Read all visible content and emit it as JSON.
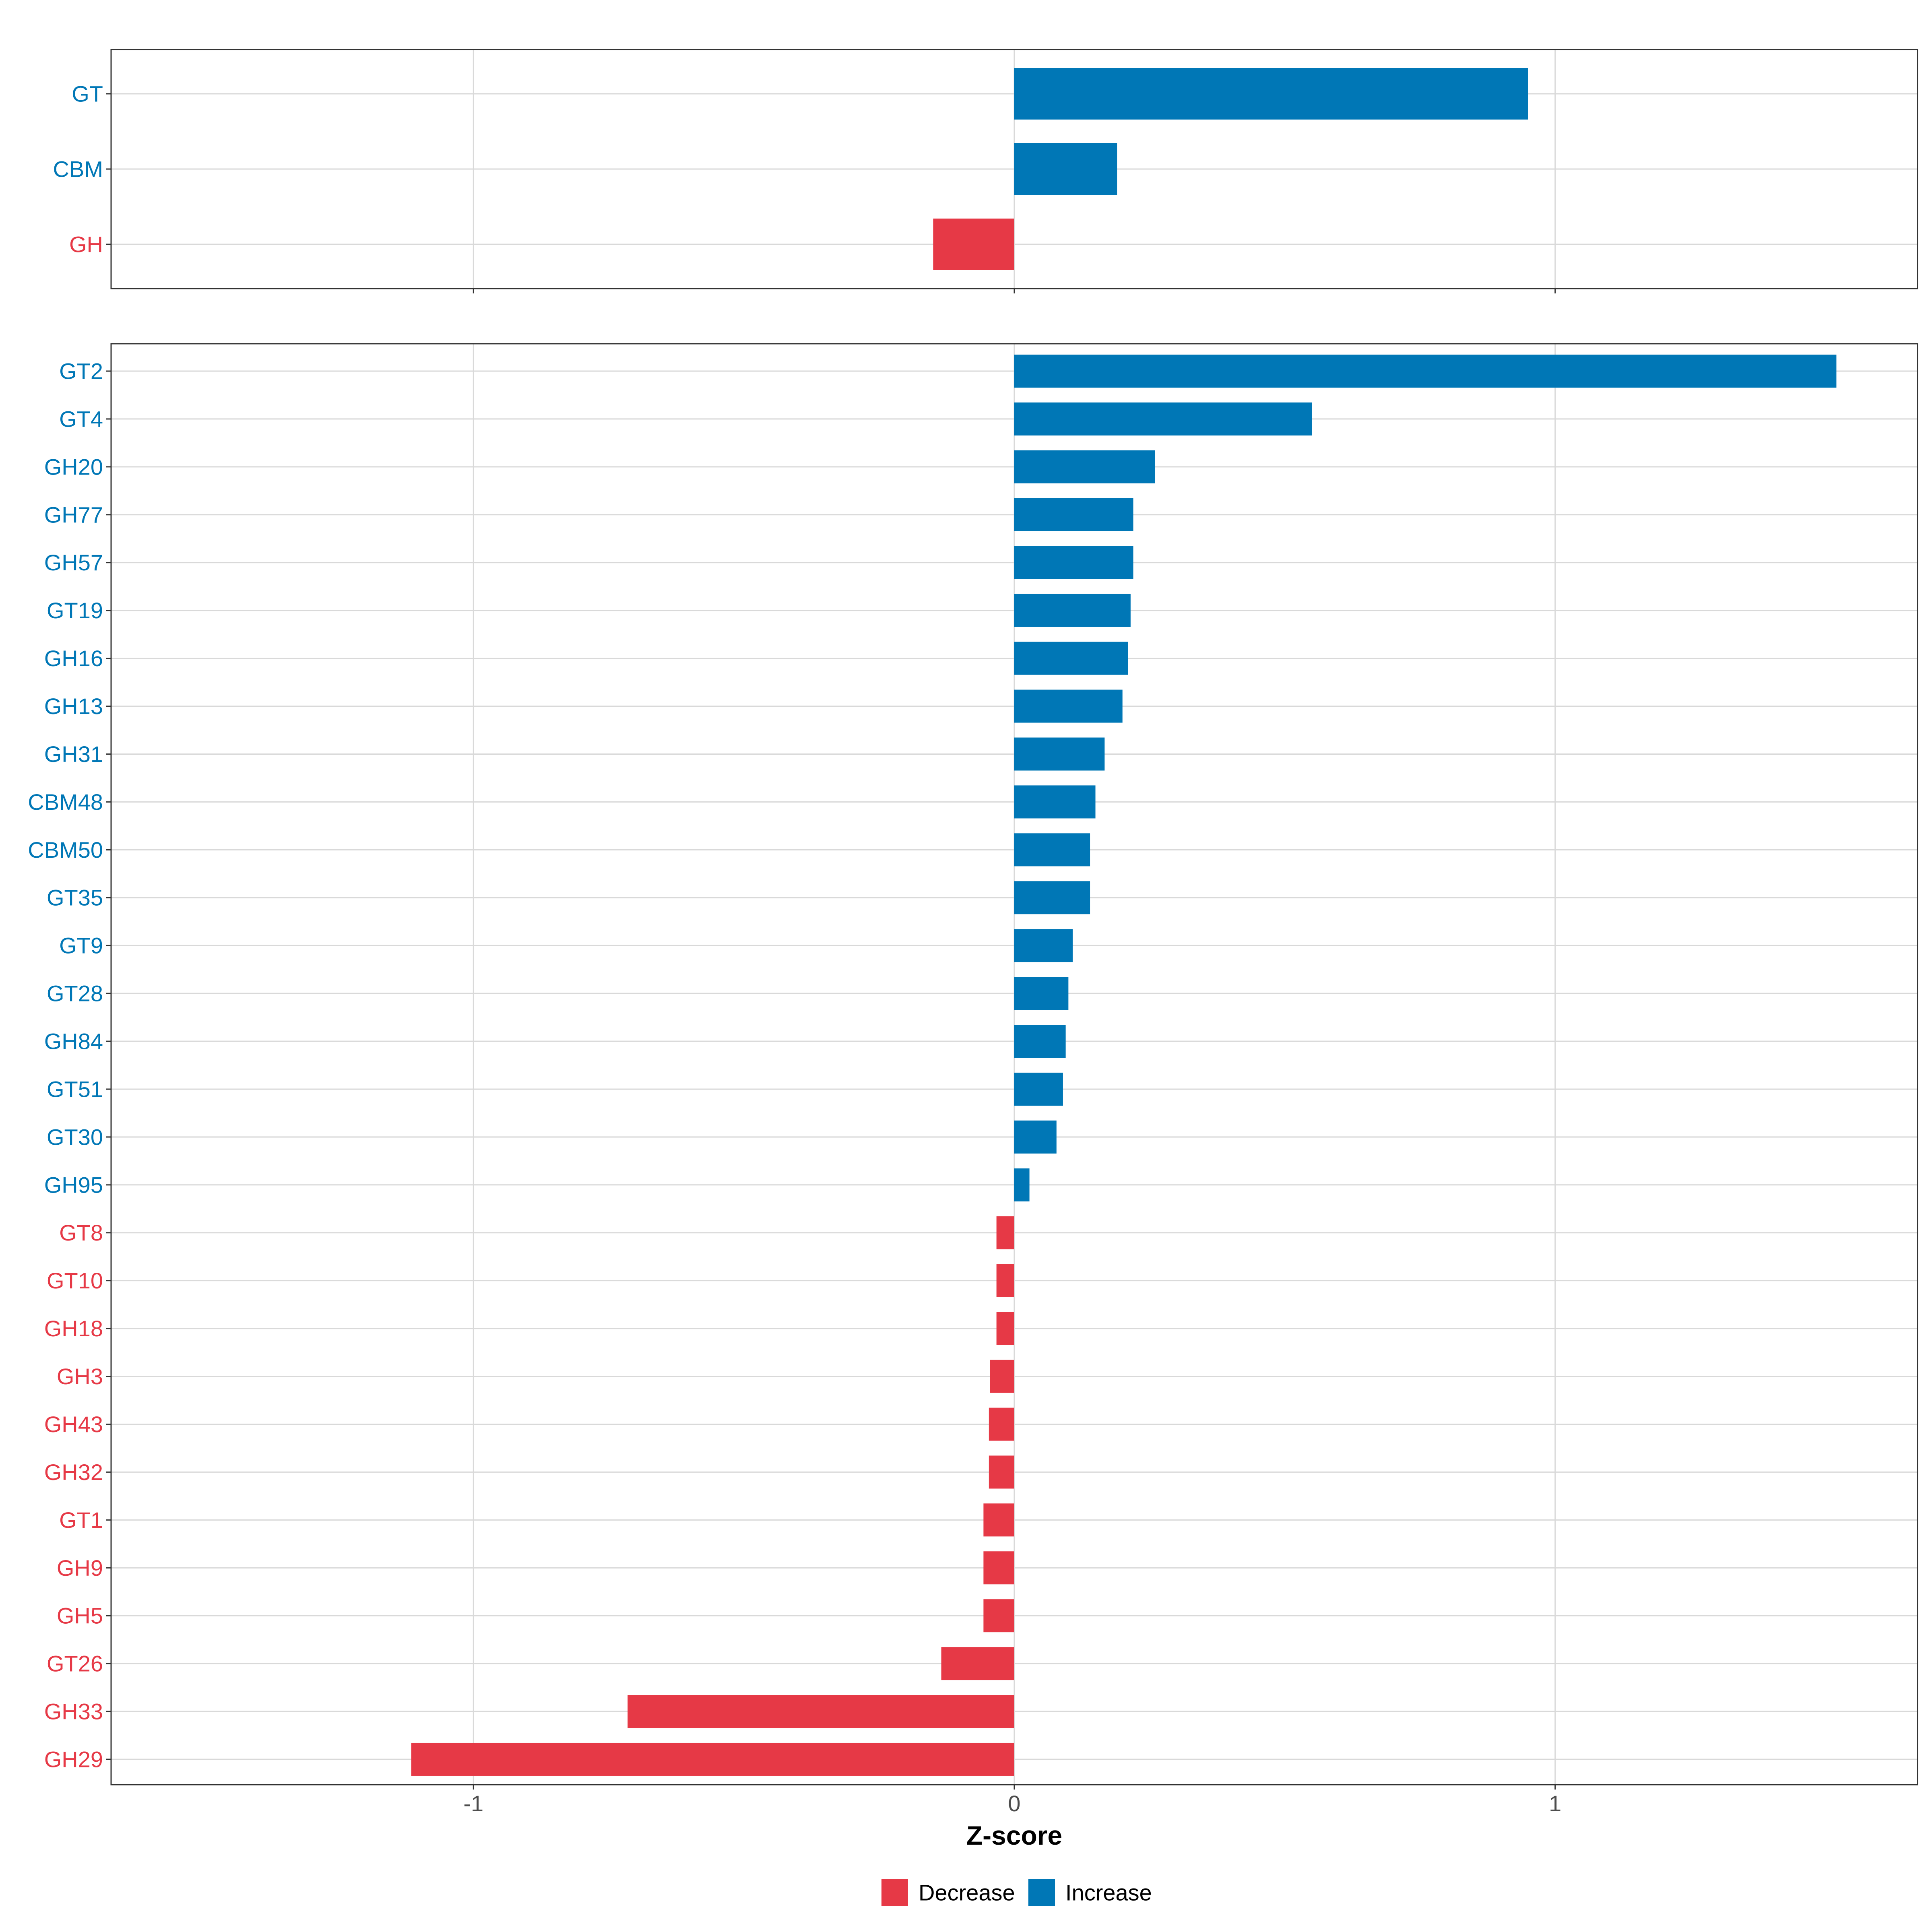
{
  "chart_data": {
    "type": "bar",
    "orientation": "horizontal",
    "xlabel": "Z-score",
    "xlim": [
      -1.67,
      1.67
    ],
    "x_ticks": [
      -1,
      0,
      1
    ],
    "x_tick_labels": [
      "-1",
      "0",
      "1"
    ],
    "grid": true,
    "legend": {
      "position": "bottom",
      "entries": [
        {
          "label": "Decrease",
          "color": "#E63946"
        },
        {
          "label": "Increase",
          "color": "#0077B6"
        }
      ]
    },
    "colors": {
      "Increase": "#0077B6",
      "Decrease": "#E63946"
    },
    "panels": [
      {
        "name": "class",
        "categories": [
          "GT",
          "CBM",
          "GH"
        ],
        "values": [
          0.95,
          0.19,
          -0.15
        ]
      },
      {
        "name": "family",
        "categories": [
          "GT2",
          "GT4",
          "GH20",
          "GH77",
          "GH57",
          "GT19",
          "GH16",
          "GH13",
          "GH31",
          "CBM48",
          "CBM50",
          "GT35",
          "GT9",
          "GT28",
          "GH84",
          "GT51",
          "GT30",
          "GH95",
          "GT8",
          "GT10",
          "GH18",
          "GH3",
          "GH43",
          "GH32",
          "GT1",
          "GH9",
          "GH5",
          "GT26",
          "GH33",
          "GH29"
        ],
        "values": [
          1.52,
          0.55,
          0.26,
          0.22,
          0.22,
          0.215,
          0.21,
          0.2,
          0.167,
          0.15,
          0.14,
          0.14,
          0.108,
          0.1,
          0.095,
          0.09,
          0.078,
          0.028,
          -0.033,
          -0.033,
          -0.033,
          -0.045,
          -0.047,
          -0.047,
          -0.057,
          -0.057,
          -0.057,
          -0.135,
          -0.715,
          -1.115
        ]
      }
    ]
  }
}
